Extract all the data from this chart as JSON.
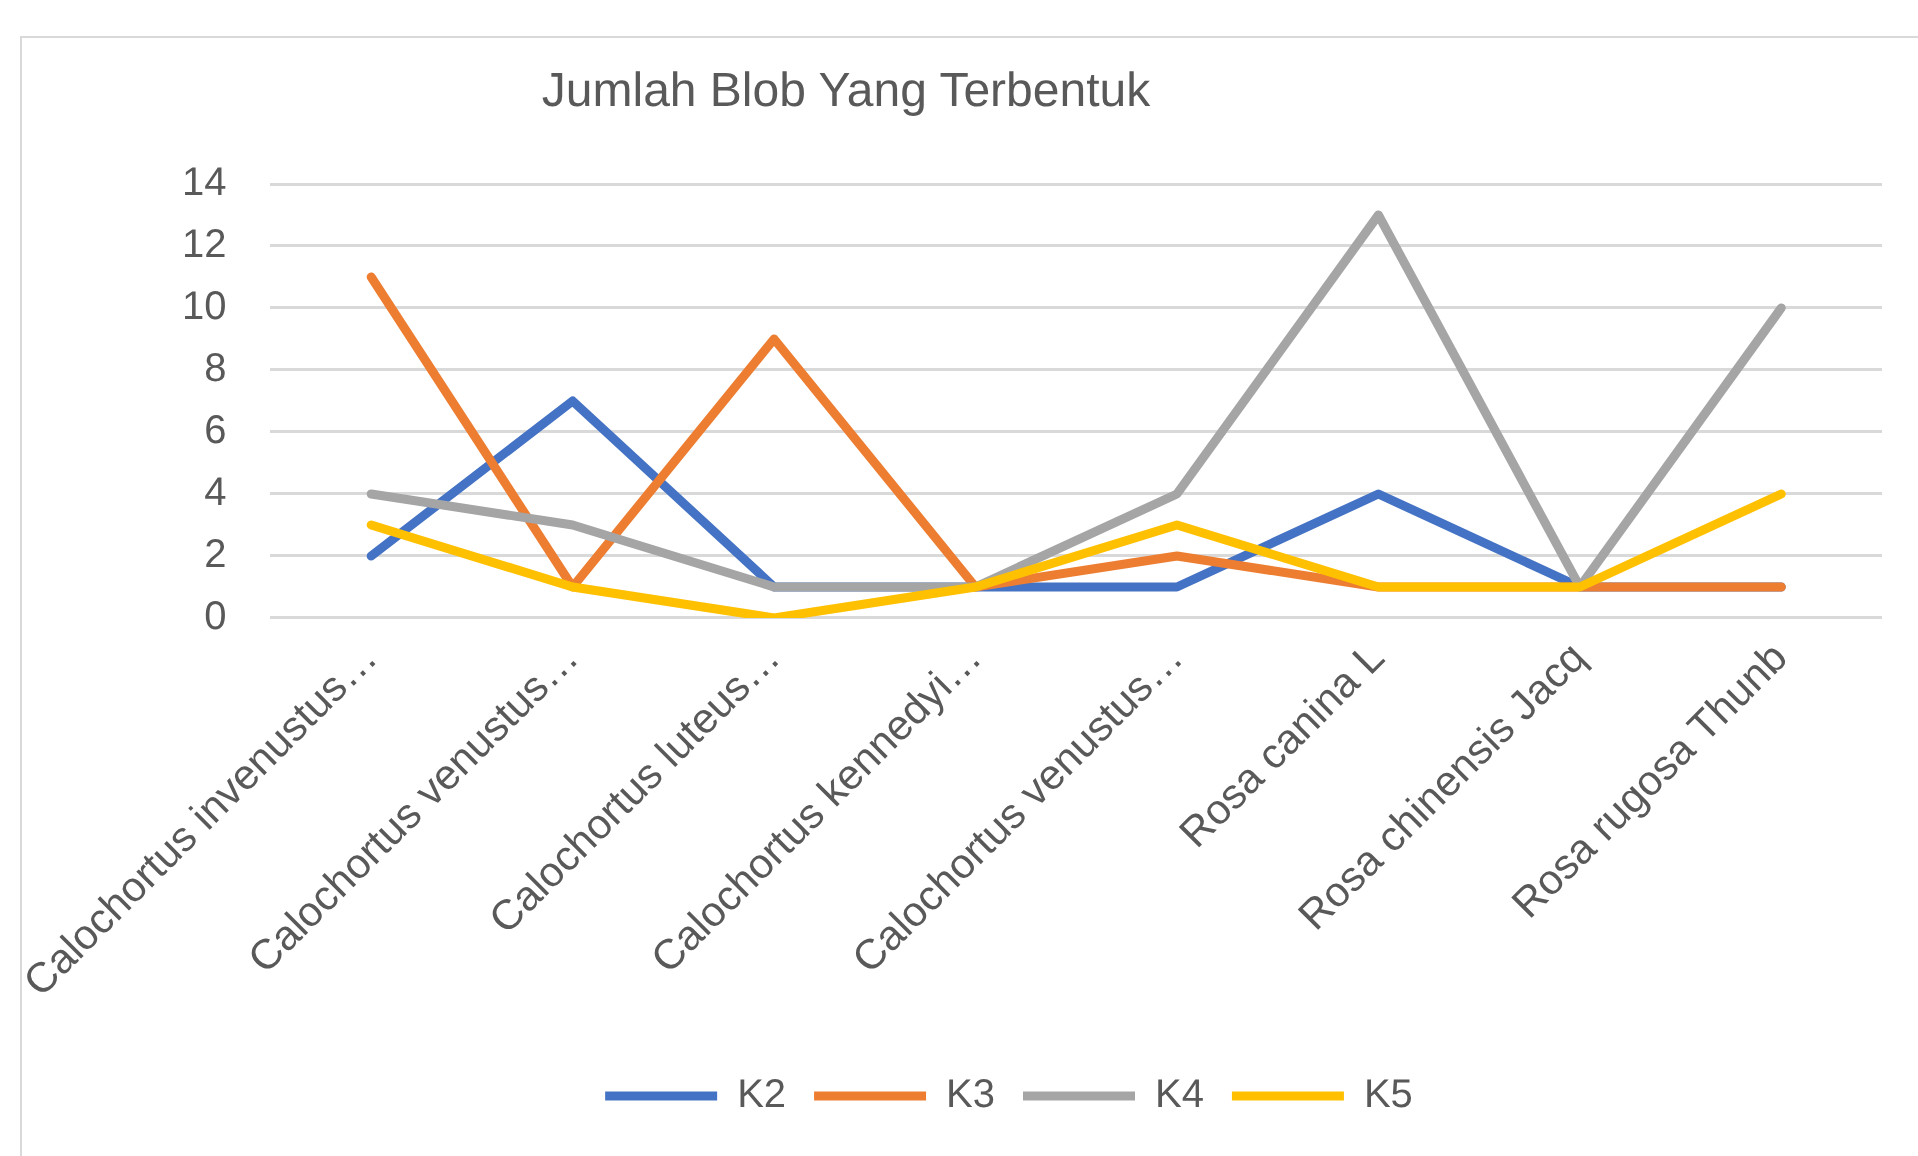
{
  "chart_data": {
    "type": "line",
    "title": "Jumlah Blob Yang Terbentuk",
    "categories": [
      "Calochortus invenustus…",
      "Calochortus venustus…",
      "Calochortus luteus…",
      "Calochortus kennedyi…",
      "Calochortus venustus…",
      "Rosa canina L",
      "Rosa chinensis Jacq",
      "Rosa rugosa Thunb"
    ],
    "series": [
      {
        "name": "K2",
        "color": "#4472c4",
        "values": [
          2,
          7,
          1,
          1,
          1,
          4,
          1,
          1
        ]
      },
      {
        "name": "K3",
        "color": "#ed7d31",
        "values": [
          11,
          1,
          9,
          1,
          2,
          1,
          1,
          1
        ]
      },
      {
        "name": "K4",
        "color": "#a5a5a5",
        "values": [
          4,
          3,
          1,
          1,
          4,
          13,
          1,
          10
        ]
      },
      {
        "name": "K5",
        "color": "#ffc000",
        "values": [
          3,
          1,
          0,
          1,
          3,
          1,
          1,
          4
        ]
      }
    ],
    "ylim": [
      0,
      14
    ],
    "yticks": [
      0,
      2,
      4,
      6,
      8,
      10,
      12,
      14
    ],
    "grid": "y",
    "legend": "bottom",
    "marker": "none",
    "line_style": "solid"
  }
}
